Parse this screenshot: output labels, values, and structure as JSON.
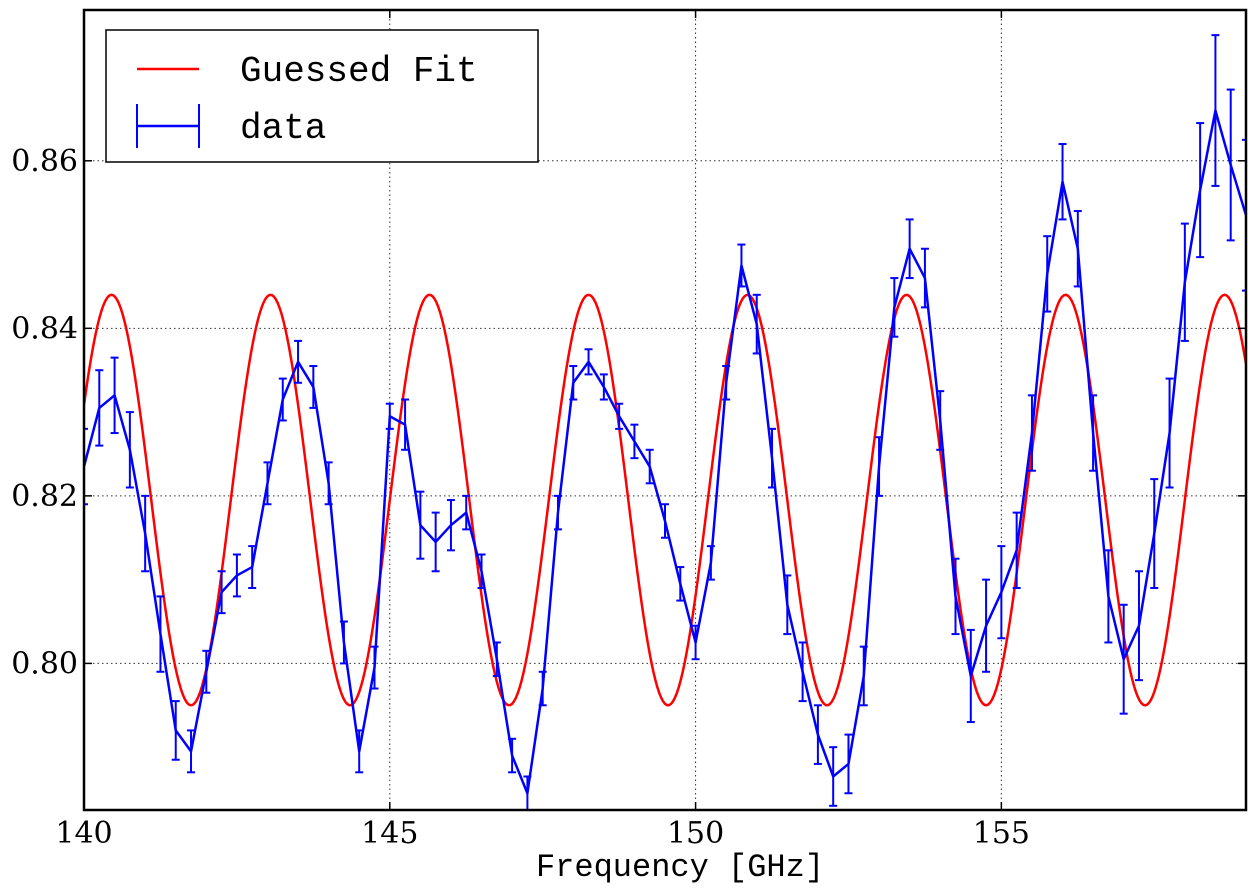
{
  "chart_data": {
    "type": "line",
    "title": "",
    "xlabel": "Frequency [GHz]",
    "ylabel": "",
    "xlim": [
      140,
      159
    ],
    "ylim": [
      0.7825,
      0.878
    ],
    "x_ticks": [
      140,
      145,
      150,
      155
    ],
    "x_tick_labels": [
      "140",
      "145",
      "150",
      "155"
    ],
    "y_ticks": [
      0.8,
      0.82,
      0.84,
      0.86
    ],
    "y_tick_labels": [
      "0.80",
      "0.82",
      "0.84",
      "0.86"
    ],
    "grid": true,
    "legend_position": "top-left",
    "series": [
      {
        "name": "Guessed Fit",
        "kind": "line",
        "color": "#ff0000",
        "model": {
          "form": "sine",
          "offset": 0.8195,
          "amplitude": 0.0245,
          "period": 2.6,
          "peak_at": 140.45
        },
        "x_range": [
          140,
          159
        ]
      },
      {
        "name": "data",
        "kind": "errorbar",
        "color": "#0000ff",
        "x": [
          140.0,
          140.25,
          140.5,
          140.75,
          141.0,
          141.25,
          141.5,
          141.75,
          142.0,
          142.25,
          142.5,
          142.75,
          143.0,
          143.25,
          143.5,
          143.75,
          144.0,
          144.25,
          144.5,
          144.75,
          145.0,
          145.25,
          145.5,
          145.75,
          146.0,
          146.25,
          146.5,
          146.75,
          147.0,
          147.25,
          147.5,
          147.75,
          148.0,
          148.25,
          148.5,
          148.75,
          149.0,
          149.25,
          149.5,
          149.75,
          150.0,
          150.25,
          150.5,
          150.75,
          151.0,
          151.25,
          151.5,
          151.75,
          152.0,
          152.25,
          152.5,
          152.75,
          153.0,
          153.25,
          153.5,
          153.75,
          154.0,
          154.25,
          154.5,
          154.75,
          155.0,
          155.25,
          155.5,
          155.75,
          156.0,
          156.25,
          156.5,
          156.75,
          157.0,
          157.25,
          157.5,
          157.75,
          158.0,
          158.25,
          158.5,
          158.75,
          159.0
        ],
        "y": [
          0.8235,
          0.8305,
          0.832,
          0.8255,
          0.8155,
          0.8035,
          0.792,
          0.7895,
          0.799,
          0.8085,
          0.8105,
          0.8115,
          0.8215,
          0.8315,
          0.836,
          0.833,
          0.8215,
          0.8025,
          0.7895,
          0.7995,
          0.8295,
          0.8285,
          0.8165,
          0.8145,
          0.8165,
          0.818,
          0.811,
          0.8005,
          0.789,
          0.7845,
          0.797,
          0.818,
          0.8335,
          0.836,
          0.833,
          0.8295,
          0.8265,
          0.8235,
          0.817,
          0.8095,
          0.8025,
          0.812,
          0.8335,
          0.8475,
          0.8405,
          0.8245,
          0.807,
          0.799,
          0.7915,
          0.7865,
          0.788,
          0.7985,
          0.8235,
          0.8425,
          0.8495,
          0.846,
          0.829,
          0.808,
          0.7985,
          0.8045,
          0.8085,
          0.8135,
          0.8275,
          0.8465,
          0.8575,
          0.8495,
          0.8275,
          0.808,
          0.8005,
          0.8045,
          0.8155,
          0.8275,
          0.8455,
          0.8565,
          0.866,
          0.8595,
          0.8535
        ],
        "yerr": [
          0.0045,
          0.0045,
          0.0045,
          0.0045,
          0.0045,
          0.0045,
          0.0035,
          0.0025,
          0.0025,
          0.0025,
          0.0025,
          0.0025,
          0.0025,
          0.0025,
          0.0025,
          0.0025,
          0.0025,
          0.0025,
          0.0025,
          0.0025,
          0.0015,
          0.003,
          0.004,
          0.0035,
          0.003,
          0.002,
          0.002,
          0.002,
          0.002,
          0.002,
          0.002,
          0.002,
          0.002,
          0.0015,
          0.0015,
          0.0015,
          0.002,
          0.002,
          0.002,
          0.002,
          0.002,
          0.002,
          0.002,
          0.0025,
          0.0035,
          0.0035,
          0.0035,
          0.0035,
          0.0035,
          0.0035,
          0.0035,
          0.0035,
          0.0035,
          0.0035,
          0.0035,
          0.0035,
          0.0035,
          0.0045,
          0.0055,
          0.0055,
          0.0055,
          0.0045,
          0.0045,
          0.0045,
          0.0045,
          0.0045,
          0.0045,
          0.0055,
          0.0065,
          0.0065,
          0.0065,
          0.0065,
          0.007,
          0.008,
          0.009,
          0.009,
          0.009
        ]
      }
    ]
  }
}
